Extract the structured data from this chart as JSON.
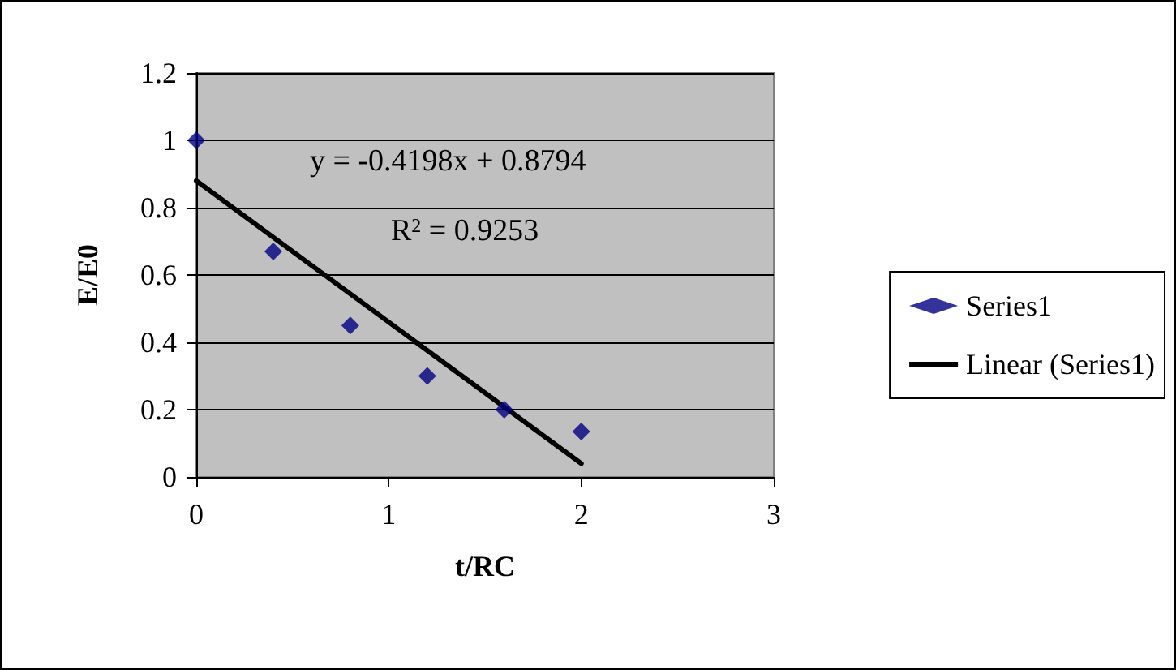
{
  "chart_data": {
    "type": "scatter",
    "xlabel": "t/RC",
    "ylabel": "E/E0",
    "xlim": [
      0,
      3
    ],
    "xticks": [
      0,
      1,
      2,
      3
    ],
    "ylim": [
      0,
      1.2
    ],
    "yticks": [
      0,
      0.2,
      0.4,
      0.6,
      0.8,
      1,
      1.2
    ],
    "grid": "y",
    "legend": "right",
    "marker": "diamond",
    "annotations": [
      "y = -0.4198x + 0.8794",
      "R$^{2}$ = 0.9253"
    ],
    "series": [
      {
        "name": "Series1",
        "color": "#000080",
        "x": [
          0,
          0.4,
          0.8,
          1.2,
          1.6,
          2.0
        ],
        "values": [
          1,
          0.67,
          0.45,
          0.3,
          0.2,
          0.135
        ]
      },
      {
        "name": "Linear (Series1)",
        "type": "line",
        "color": "#000000",
        "marker": "none",
        "line_style": "solid",
        "x": [
          0,
          2
        ],
        "values": [
          0.88,
          0.04
        ]
      }
    ]
  }
}
